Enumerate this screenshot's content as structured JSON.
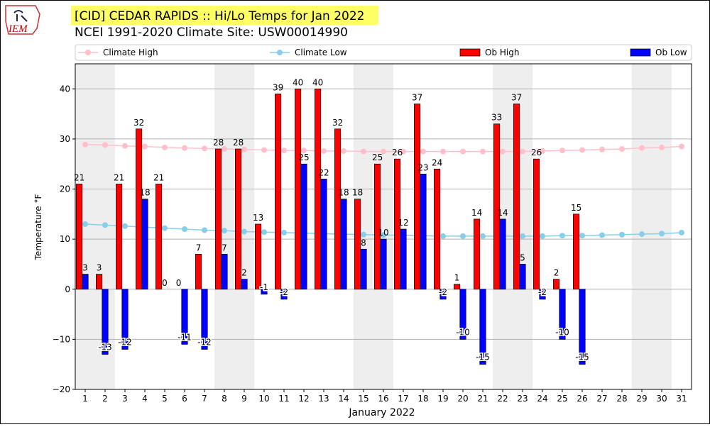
{
  "logo_text": "IEM",
  "chart_data": {
    "type": "bar",
    "title": "[CID] CEDAR RAPIDS :: Hi/Lo Temps for Jan 2022",
    "subtitle": "NCEI 1991-2020 Climate Site: USW00014990",
    "x_label": "January 2022",
    "y_label": "Temperature °F",
    "categories": [
      "1",
      "2",
      "3",
      "4",
      "5",
      "6",
      "7",
      "8",
      "9",
      "10",
      "11",
      "12",
      "13",
      "14",
      "15",
      "16",
      "17",
      "18",
      "19",
      "20",
      "21",
      "22",
      "23",
      "24",
      "25",
      "26",
      "27",
      "28",
      "29",
      "30",
      "31"
    ],
    "ylim": [
      -20,
      45
    ],
    "yticks": [
      {
        "value": -20,
        "label": "−20"
      },
      {
        "value": -10,
        "label": "−10"
      },
      0,
      10,
      20,
      30,
      40
    ],
    "grid": true,
    "legend": "top",
    "series": [
      {
        "name": "Climate High",
        "kind": "line",
        "color": "#ffc0cb",
        "values": [
          28.9,
          28.8,
          28.6,
          28.5,
          28.3,
          28.2,
          28.1,
          28.0,
          27.9,
          27.8,
          27.7,
          27.7,
          27.6,
          27.6,
          27.5,
          27.5,
          27.5,
          27.5,
          27.5,
          27.5,
          27.5,
          27.5,
          27.5,
          27.6,
          27.7,
          27.8,
          27.9,
          28.0,
          28.2,
          28.3,
          28.5
        ]
      },
      {
        "name": "Climate Low",
        "kind": "line",
        "color": "#87ceeb",
        "values": [
          13.0,
          12.8,
          12.6,
          12.4,
          12.2,
          12.0,
          11.8,
          11.7,
          11.5,
          11.4,
          11.3,
          11.2,
          11.1,
          11.0,
          10.9,
          10.8,
          10.8,
          10.7,
          10.6,
          10.6,
          10.6,
          10.6,
          10.6,
          10.6,
          10.7,
          10.7,
          10.8,
          10.9,
          11.0,
          11.1,
          11.3
        ]
      },
      {
        "name": "Ob High",
        "kind": "bar",
        "color": "#ff0000",
        "values": [
          21,
          3,
          21,
          32,
          21,
          0,
          7,
          28,
          28,
          13,
          39,
          40,
          40,
          32,
          18,
          25,
          26,
          37,
          24,
          1,
          14,
          33,
          37,
          26,
          2,
          15,
          null,
          null,
          null,
          null,
          null
        ]
      },
      {
        "name": "Ob Low",
        "kind": "bar",
        "color": "#0000ff",
        "values": [
          3,
          -13,
          -12,
          18,
          0,
          -11,
          -12,
          7,
          2,
          -1,
          -2,
          25,
          22,
          18,
          8,
          10,
          12,
          23,
          -2,
          -10,
          -15,
          14,
          5,
          -2,
          -10,
          -15,
          null,
          null,
          null,
          null,
          null
        ]
      }
    ]
  }
}
